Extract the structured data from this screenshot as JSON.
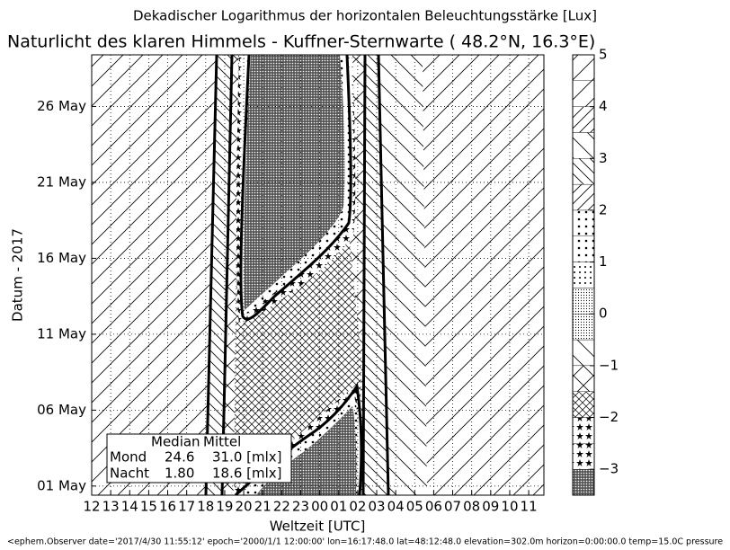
{
  "chart_data": {
    "type": "contour",
    "title": "Dekadischer Logarithmus der horizontalen Beleuchtungsstärke [Lux]",
    "subtitle": "Naturlicht des klaren Himmels - Kuffner-Sternwarte ( 48.2°N, 16.3°E)",
    "xlabel": "Weltzeit [UTC]",
    "ylabel": "Datum - 2017",
    "xlim": [
      12,
      35.8
    ],
    "ylim": [
      0.4,
      29.4
    ],
    "xticks": [
      12,
      13,
      14,
      15,
      16,
      17,
      18,
      19,
      20,
      21,
      22,
      23,
      {
        "value": 24,
        "label": "00"
      },
      {
        "value": 25,
        "label": "01"
      },
      {
        "value": 26,
        "label": "02"
      },
      {
        "value": 27,
        "label": "03"
      },
      {
        "value": 28,
        "label": "04"
      },
      {
        "value": 29,
        "label": "05"
      },
      {
        "value": 30,
        "label": "06"
      },
      {
        "value": 31,
        "label": "07"
      },
      {
        "value": 32,
        "label": "08"
      },
      {
        "value": 33,
        "label": "09"
      },
      {
        "value": 34,
        "label": "10"
      },
      {
        "value": 35,
        "label": "11"
      }
    ],
    "yticks": [
      {
        "value": 1,
        "label": "01 May"
      },
      {
        "value": 6,
        "label": "06 May"
      },
      {
        "value": 11,
        "label": "11 May"
      },
      {
        "value": 16,
        "label": "16 May"
      },
      {
        "value": 21,
        "label": "21 May"
      },
      {
        "value": 26,
        "label": "26 May"
      }
    ],
    "grid": true,
    "colorbar": {
      "lim": [
        -3.5,
        5
      ],
      "levels": [
        -3.5,
        -3,
        -2.5,
        -2,
        -1.5,
        -1,
        -0.5,
        0,
        0.5,
        1,
        1.5,
        2,
        2.5,
        3,
        3.5,
        4,
        4.5,
        5
      ],
      "ticks": [
        5,
        4,
        3,
        2,
        1,
        0,
        {
          "value": -1,
          "label": "−1"
        },
        {
          "value": -2,
          "label": "−2"
        },
        {
          "value": -3,
          "label": "−3"
        }
      ]
    },
    "table": {
      "header": [
        "Median",
        "Mittel"
      ],
      "rows": [
        [
          "Mond",
          "24.6",
          "31.0 [mlx]"
        ],
        [
          "Nacht",
          "1.80",
          "18.6 [mlx]"
        ]
      ]
    },
    "footer": "<ephem.Observer date='2017/4/30 11:55:12' epoch='2000/1/1 12:00:00' lon=16:17:48.0 lat=48:12:48.0 elevation=302.0m horizon=0:00:00.0 temp=15.0C pressure"
  }
}
